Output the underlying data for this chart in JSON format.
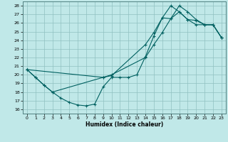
{
  "xlabel": "Humidex (Indice chaleur)",
  "bg_color": "#c0e8e8",
  "grid_color": "#90c0c0",
  "line_color": "#006060",
  "xlim": [
    -0.5,
    23.5
  ],
  "ylim": [
    15.5,
    28.5
  ],
  "xticks": [
    0,
    1,
    2,
    3,
    4,
    5,
    6,
    7,
    8,
    9,
    10,
    11,
    12,
    13,
    14,
    15,
    16,
    17,
    18,
    19,
    20,
    21,
    22,
    23
  ],
  "yticks": [
    16,
    17,
    18,
    19,
    20,
    21,
    22,
    23,
    24,
    25,
    26,
    27,
    28
  ],
  "series1_x": [
    0,
    1,
    2,
    3,
    4,
    5,
    6,
    7,
    8,
    9,
    10,
    11,
    12,
    13,
    14,
    15,
    16,
    17,
    18,
    19,
    20,
    21,
    22,
    23
  ],
  "series1_y": [
    20.6,
    19.7,
    18.8,
    18.0,
    17.3,
    16.8,
    16.5,
    16.4,
    16.6,
    18.6,
    19.7,
    19.7,
    19.7,
    20.0,
    22.1,
    24.5,
    26.6,
    26.5,
    28.0,
    27.3,
    26.4,
    25.8,
    25.8,
    24.3
  ],
  "series2_x": [
    0,
    1,
    2,
    3,
    9,
    10,
    14,
    15,
    16,
    17,
    18,
    19,
    20,
    21,
    22,
    23
  ],
  "series2_y": [
    20.6,
    19.7,
    18.8,
    18.0,
    19.7,
    19.9,
    23.5,
    24.9,
    26.6,
    28.0,
    27.3,
    26.4,
    25.8,
    25.8,
    25.8,
    24.3
  ],
  "series3_x": [
    0,
    9,
    10,
    14,
    15,
    16,
    17,
    18,
    19,
    20,
    21,
    22,
    23
  ],
  "series3_y": [
    20.6,
    19.7,
    20.0,
    22.0,
    23.5,
    24.9,
    26.5,
    27.3,
    26.4,
    26.3,
    25.8,
    25.8,
    24.3
  ]
}
